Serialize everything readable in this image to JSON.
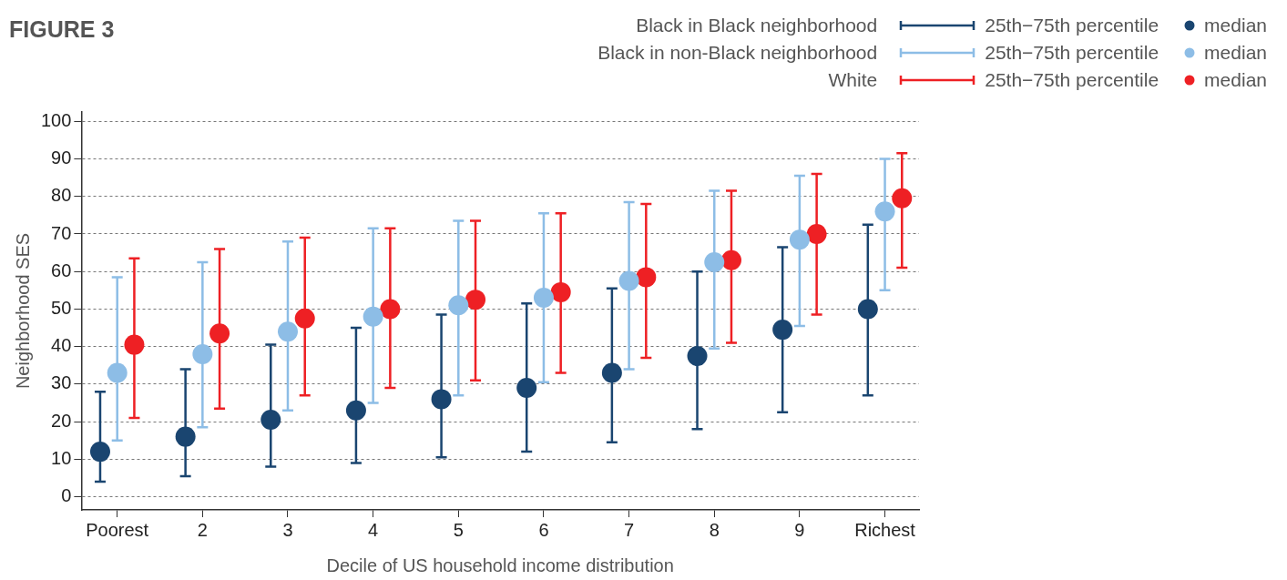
{
  "chart_data": {
    "type": "scatter",
    "title": "FIGURE 3",
    "xlabel": "Decile of US household income distribution",
    "ylabel": "Neighborhood SES",
    "categories": [
      "Poorest",
      "2",
      "3",
      "4",
      "5",
      "6",
      "7",
      "8",
      "9",
      "Richest"
    ],
    "series": [
      {
        "name": "Black in Black neighborhood",
        "color": "#1a4570",
        "values": [
          12,
          16,
          20.5,
          23,
          26,
          29,
          33,
          37.5,
          44.5,
          50
        ],
        "errors": [
          [
            4,
            28
          ],
          [
            5.5,
            34
          ],
          [
            8,
            40.5
          ],
          [
            9,
            45
          ],
          [
            10.5,
            48.5
          ],
          [
            12,
            51.5
          ],
          [
            14.5,
            55.5
          ],
          [
            18,
            60
          ],
          [
            22.5,
            66.5
          ],
          [
            27,
            72.5
          ]
        ]
      },
      {
        "name": "Black in non-Black neighborhood",
        "color": "#8dbde6",
        "values": [
          33,
          38,
          44,
          48,
          51,
          53,
          57.5,
          62.5,
          68.5,
          76
        ],
        "errors": [
          [
            15,
            58.5
          ],
          [
            18.5,
            62.5
          ],
          [
            23,
            68
          ],
          [
            25,
            71.5
          ],
          [
            27,
            73.5
          ],
          [
            30.5,
            75.5
          ],
          [
            34,
            78.5
          ],
          [
            39.5,
            81.5
          ],
          [
            45.5,
            85.5
          ],
          [
            55,
            90
          ]
        ]
      },
      {
        "name": "White",
        "color": "#ee2024",
        "values": [
          40.5,
          43.5,
          47.5,
          50,
          52.5,
          54.5,
          58.5,
          63,
          70,
          79.5
        ],
        "errors": [
          [
            21,
            63.5
          ],
          [
            23.5,
            66
          ],
          [
            27,
            69
          ],
          [
            29,
            71.5
          ],
          [
            31,
            73.5
          ],
          [
            33,
            75.5
          ],
          [
            37,
            78
          ],
          [
            41,
            81.5
          ],
          [
            48.5,
            86
          ],
          [
            61,
            91.5
          ]
        ]
      }
    ],
    "annotations": [
      "25th−75th percentile",
      "median"
    ],
    "ylim": [
      -3.5,
      102.5
    ],
    "yticks": [
      0,
      10,
      20,
      30,
      40,
      50,
      60,
      70,
      80,
      90,
      100
    ],
    "grid": "y",
    "legend": "top right",
    "marker": "circle"
  }
}
